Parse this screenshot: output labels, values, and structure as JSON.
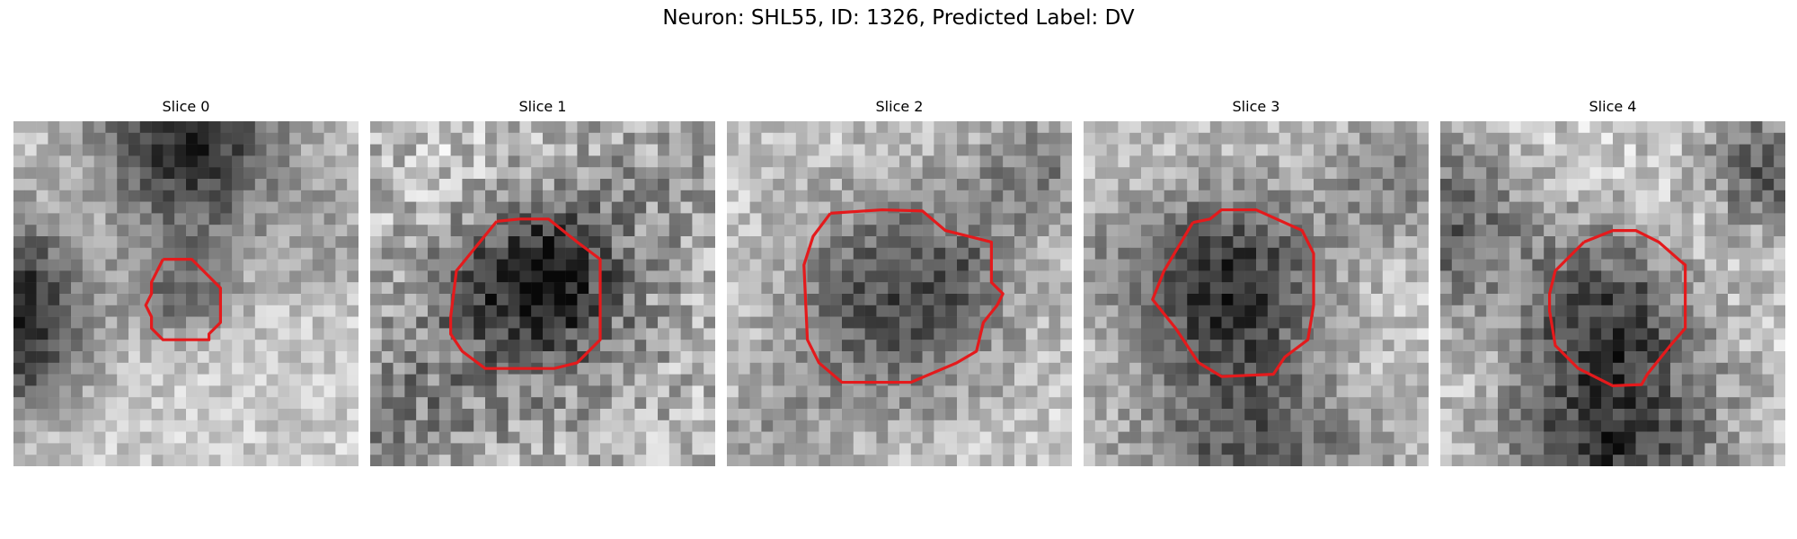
{
  "figure": {
    "title": "Neuron: SHL55, ID: 1326, Predicted Label: DV"
  },
  "panels": [
    {
      "title": "Slice 0",
      "image": "grayscale-microscopy-slice",
      "contour_color": "#e41a1c"
    },
    {
      "title": "Slice 1",
      "image": "grayscale-microscopy-slice",
      "contour_color": "#e41a1c"
    },
    {
      "title": "Slice 2",
      "image": "grayscale-microscopy-slice",
      "contour_color": "#e41a1c"
    },
    {
      "title": "Slice 3",
      "image": "grayscale-microscopy-slice",
      "contour_color": "#e41a1c"
    },
    {
      "title": "Slice 4",
      "image": "grayscale-microscopy-slice",
      "contour_color": "#e41a1c"
    }
  ]
}
